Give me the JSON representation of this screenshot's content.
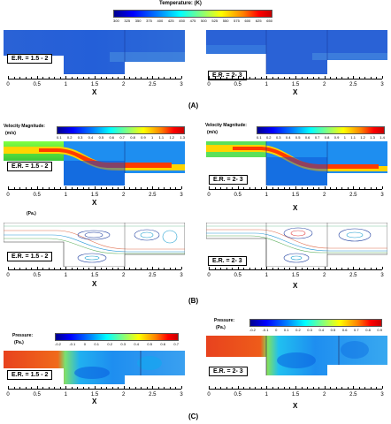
{
  "temperature_bar": {
    "title": "Temperature: (K)",
    "ticks": [
      "300",
      "325",
      "350",
      "375",
      "400",
      "425",
      "450",
      "475",
      "500",
      "525",
      "550",
      "575",
      "600",
      "625",
      "650"
    ]
  },
  "velocity_bar": {
    "title": "Velocity Magnitude:",
    "units": "(m/s)",
    "left_ticks": [
      "0.1",
      "0.2",
      "0.3",
      "0.4",
      "0.5",
      "0.6",
      "0.7",
      "0.8",
      "0.9",
      "1",
      "1.1",
      "1.2",
      "1.3"
    ],
    "right_ticks": [
      "0.1",
      "0.2",
      "0.3",
      "0.4",
      "0.5",
      "0.6",
      "0.7",
      "0.8",
      "0.9",
      "1",
      "1.1",
      "1.2",
      "1.3",
      "1.4"
    ]
  },
  "pa_label": "(Pa.)",
  "pressure_bar": {
    "title": "Pressure:",
    "units": "(Pa.)",
    "left_ticks": [
      "-0.2",
      "-0.1",
      "0",
      "0.1",
      "0.2",
      "0.3",
      "0.4",
      "0.5",
      "0.6",
      "0.7"
    ],
    "right_ticks": [
      "-0.2",
      "-0.1",
      "0",
      "0.1",
      "0.2",
      "0.3",
      "0.4",
      "0.5",
      "0.6",
      "0.7",
      "0.8",
      "0.9"
    ]
  },
  "er_labels": {
    "left": "E.R. = 1.5 - 2",
    "right": "E.R. =  2- 3"
  },
  "axis": {
    "left_ticks": [
      "0",
      "0.5",
      "1",
      "1.5",
      "2",
      "2.5",
      "3"
    ],
    "right_ticks": [
      "0",
      "0.5",
      "1",
      "1.5",
      "2",
      "2.5",
      "3"
    ],
    "xlabel": "X"
  },
  "panels": {
    "a": "(A)",
    "b": "(B)",
    "c": "(C)"
  },
  "colors": {
    "jet_start": "#00008f",
    "jet_end": "#c80000",
    "temperature_field": "#2a62d6",
    "inlet_pressure": "#e8421e"
  }
}
